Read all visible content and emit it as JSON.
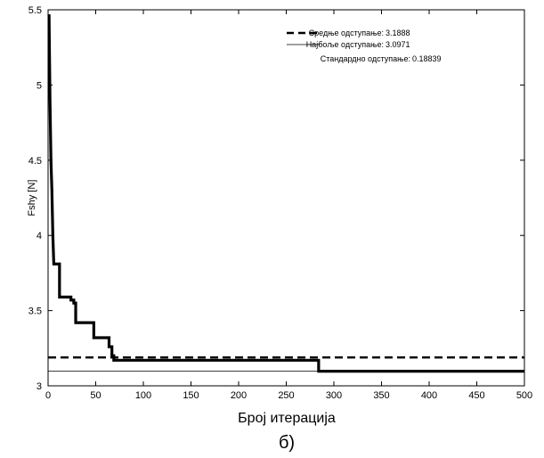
{
  "chart_data": {
    "type": "line",
    "xlabel": "Број итерација",
    "ylabel": "Fshy [N]",
    "caption": "б)",
    "xlim": [
      0,
      500
    ],
    "ylim": [
      3,
      5.5
    ],
    "xticks": [
      0,
      50,
      100,
      150,
      200,
      250,
      300,
      350,
      400,
      450,
      500
    ],
    "yticks": [
      3,
      3.5,
      4,
      4.5,
      5,
      5.5
    ],
    "grid": false,
    "legend_position": "top-right",
    "legend": {
      "mean_label": "Средње одступање:",
      "mean_value": "3.1888",
      "best_label": "Најбоље одступање:",
      "best_value": "3.0971",
      "std_label": "Стандардно одступање:",
      "std_value": "0.18839"
    },
    "series": [
      {
        "name": "Средње одступање",
        "style": "dashed",
        "x": [
          0,
          500
        ],
        "y": [
          3.1888,
          3.1888
        ]
      },
      {
        "name": "Најбоље одступање",
        "style": "thin",
        "x": [
          0,
          500
        ],
        "y": [
          3.0971,
          3.0971
        ]
      },
      {
        "style": "thick",
        "x": [
          1,
          2,
          3,
          4,
          5,
          6,
          6,
          12,
          12,
          24,
          24,
          27,
          27,
          29,
          29,
          48,
          48,
          64,
          64,
          67,
          67,
          69,
          69,
          284,
          284,
          500
        ],
        "y": [
          5.47,
          4.9,
          4.5,
          4.3,
          4.0,
          3.81,
          3.81,
          3.81,
          3.59,
          3.59,
          3.57,
          3.57,
          3.55,
          3.55,
          3.42,
          3.42,
          3.32,
          3.32,
          3.26,
          3.26,
          3.2,
          3.2,
          3.17,
          3.17,
          3.097,
          3.097
        ]
      }
    ]
  }
}
